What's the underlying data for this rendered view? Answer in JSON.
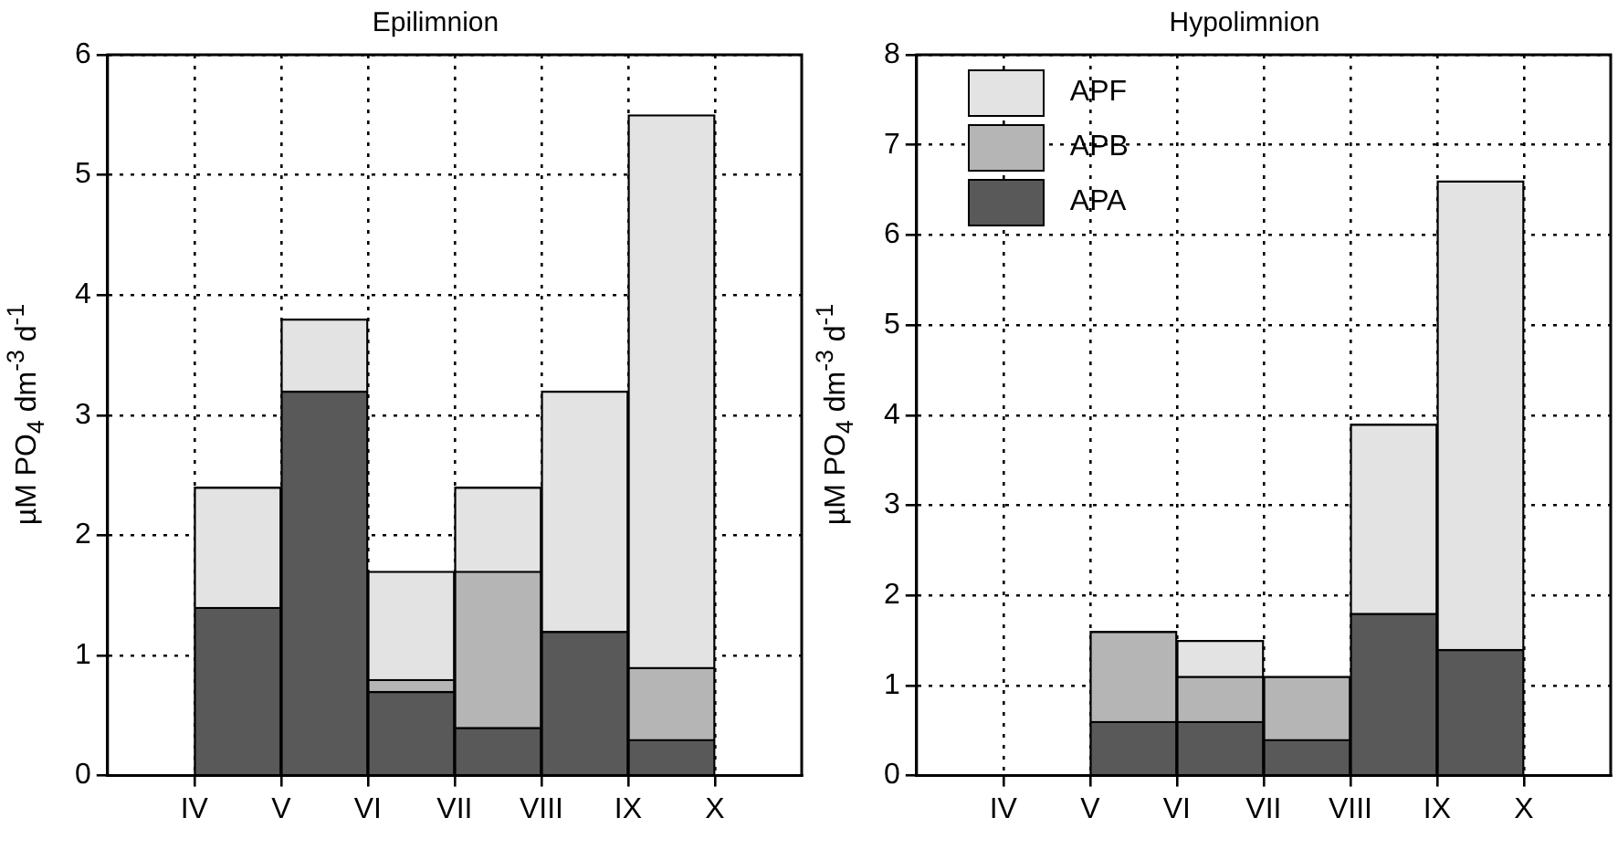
{
  "chart_data": [
    {
      "type": "bar",
      "title": "Epilimnion",
      "ylabel": "µM PO$_{4}$ dm$^{-3}$ d$^{-1}$",
      "stacked": true,
      "categories": [
        "IV",
        "V",
        "VI",
        "VII",
        "VIII",
        "IX",
        "X"
      ],
      "ylim": [
        0,
        6
      ],
      "yticks": [
        0,
        1,
        2,
        3,
        4,
        5,
        6
      ],
      "grid": true,
      "legend": false,
      "series": [
        {
          "color": "#595959",
          "values": [
            1.4,
            3.2,
            0.7,
            0.4,
            1.2,
            0.3,
            null
          ]
        },
        {
          "color": "#b5b5b5",
          "values": [
            0,
            0,
            0.1,
            1.3,
            0,
            0.6,
            null
          ]
        },
        {
          "color": "#e3e3e3",
          "values": [
            1.0,
            0.6,
            0.9,
            0.7,
            2.0,
            4.6,
            null
          ]
        }
      ]
    },
    {
      "type": "bar",
      "title": "Hypolimnion",
      "ylabel": "µM PO$_{4}$ dm$^{-3}$ d$^{-1}$",
      "stacked": true,
      "categories": [
        "IV",
        "V",
        "VI",
        "VII",
        "VIII",
        "IX",
        "X"
      ],
      "ylim": [
        0,
        8
      ],
      "yticks": [
        0,
        1,
        2,
        3,
        4,
        5,
        6,
        7,
        8
      ],
      "grid": true,
      "legend": "top left",
      "series": [
        {
          "name": "APA",
          "color": "#595959",
          "values": [
            null,
            0.6,
            0.6,
            0.4,
            1.8,
            1.4,
            null
          ]
        },
        {
          "name": "APB",
          "color": "#b5b5b5",
          "values": [
            null,
            1.0,
            0.5,
            0.7,
            0,
            0,
            null
          ]
        },
        {
          "name": "APF",
          "color": "#e3e3e3",
          "values": [
            null,
            0,
            0.4,
            0,
            2.1,
            5.2,
            null
          ]
        }
      ]
    }
  ]
}
